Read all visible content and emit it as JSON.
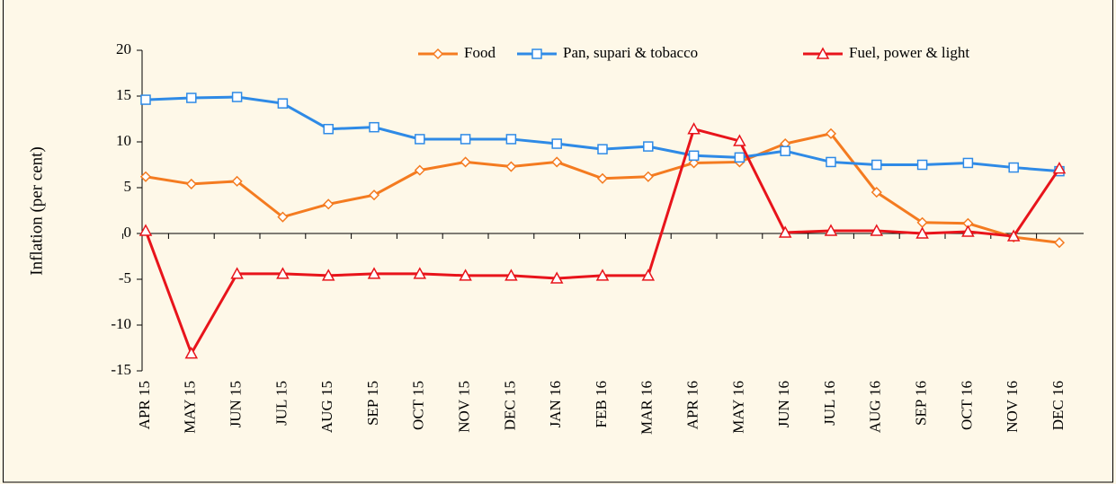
{
  "chart_data": {
    "type": "line",
    "y_label": "Inflation (per cent)",
    "categories": [
      "APR 15",
      "MAY 15",
      "JUN 15",
      "JUL 15",
      "AUG 15",
      "SEP 15",
      "OCT 15",
      "NOV 15",
      "DEC 15",
      "JAN 16",
      "FEB 16",
      "MAR 16",
      "APR 16",
      "MAY 16",
      "JUN 16",
      "JUL 16",
      "AUG 16",
      "SEP 16",
      "OCT 16",
      "NOV 16",
      "DEC 16"
    ],
    "series": [
      {
        "name": "Food",
        "color": "#f47b20",
        "marker": "diamond",
        "values": [
          6.2,
          5.4,
          5.7,
          1.8,
          3.2,
          4.2,
          6.9,
          7.8,
          7.3,
          7.8,
          6.0,
          6.2,
          7.7,
          7.8,
          9.8,
          10.9,
          4.5,
          1.2,
          1.1,
          -0.4,
          -1.0
        ]
      },
      {
        "name": "Pan, supari & tobacco",
        "color": "#2e8ae6",
        "marker": "square",
        "values": [
          14.6,
          14.8,
          14.9,
          14.2,
          11.4,
          11.6,
          10.3,
          10.3,
          10.3,
          9.8,
          9.2,
          9.5,
          8.5,
          8.3,
          9.0,
          7.8,
          7.5,
          7.5,
          7.7,
          7.2,
          6.8
        ]
      },
      {
        "name": "Fuel, power & light",
        "color": "#e8141b",
        "marker": "triangle",
        "values": [
          0.3,
          -13.1,
          -4.4,
          -4.4,
          -4.6,
          -4.4,
          -4.4,
          -4.6,
          -4.6,
          -4.9,
          -4.6,
          -4.6,
          11.4,
          10.1,
          0.1,
          0.3,
          0.3,
          0.0,
          0.2,
          -0.3,
          7.1
        ]
      }
    ],
    "ylim": [
      -15,
      20
    ],
    "yticks": [
      -15,
      -10,
      -5,
      0,
      5,
      10,
      15,
      20
    ],
    "legend": "top",
    "grid": false
  }
}
